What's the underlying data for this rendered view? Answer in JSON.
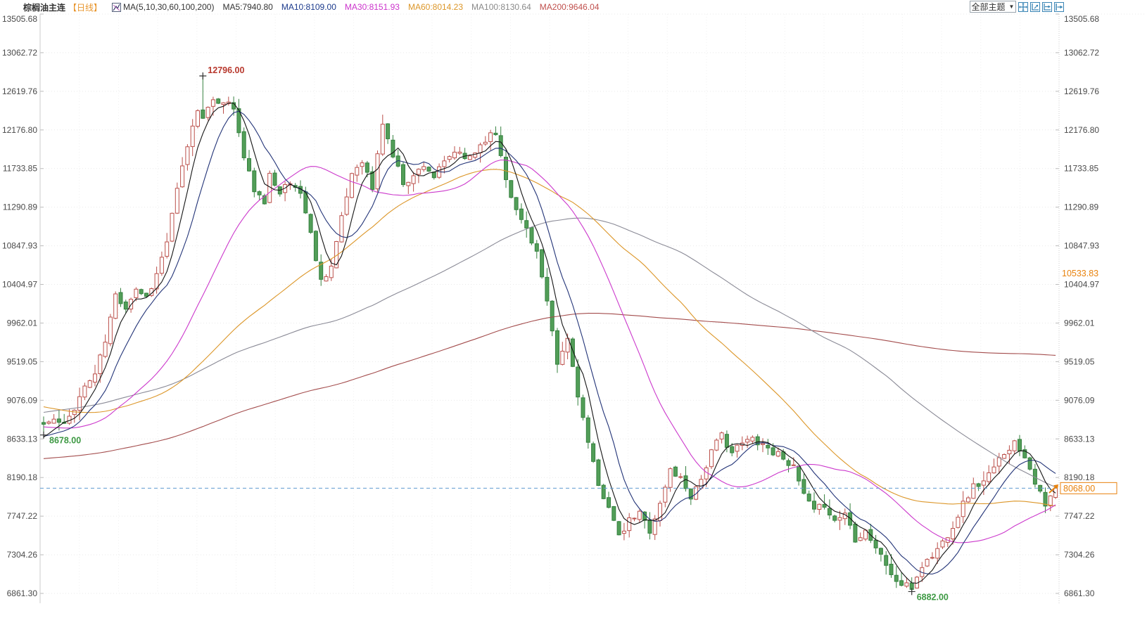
{
  "header": {
    "symbol": "棕榈油主连",
    "period": "【日线】",
    "ma_group": "MA(5,10,30,60,100,200)",
    "ma_items": [
      {
        "label": "MA5:7940.80",
        "color": "#333333"
      },
      {
        "label": "MA10:8109.00",
        "color": "#1b3a8c"
      },
      {
        "label": "MA30:8151.93",
        "color": "#cc33cc"
      },
      {
        "label": "MA60:8014.23",
        "color": "#dc9628"
      },
      {
        "label": "MA100:8130.64",
        "color": "#8a8a8a"
      },
      {
        "label": "MA200:9646.04",
        "color": "#c0504d"
      }
    ]
  },
  "toolbar": {
    "themes_label": "全部主题",
    "arrow": "▼",
    "icon_color": "#3a85b5",
    "icons": [
      "pan-icon",
      "auto-scale-icon",
      "shift-right-icon",
      "goto-latest-icon"
    ]
  },
  "chart_data": {
    "type": "candlestick",
    "title": "棕榈油主连 日线",
    "axis_max": 13505.68,
    "axis_min": 6861.3,
    "grid": true,
    "legend_position": "top-left",
    "y_ticks": [
      {
        "label": "13505.68",
        "value": 13505.68
      },
      {
        "label": "13062.72",
        "value": 13062.72
      },
      {
        "label": "12619.76",
        "value": 12619.76
      },
      {
        "label": "12176.80",
        "value": 12176.8
      },
      {
        "label": "11733.85",
        "value": 11733.85
      },
      {
        "label": "11290.89",
        "value": 11290.89
      },
      {
        "label": "10847.93",
        "value": 10847.93
      },
      {
        "label": "10404.97",
        "value": 10404.97
      },
      {
        "label": "9962.01",
        "value": 9962.01
      },
      {
        "label": "9519.05",
        "value": 9519.05
      },
      {
        "label": "9076.09",
        "value": 9076.09
      },
      {
        "label": "8633.13",
        "value": 8633.13
      },
      {
        "label": "8190.18",
        "value": 8190.18
      },
      {
        "label": "7747.22",
        "value": 7747.22
      },
      {
        "label": "7304.26",
        "value": 7304.26
      },
      {
        "label": "6861.30",
        "value": 6861.3
      }
    ],
    "current_price": 8068.0,
    "annotations": {
      "high_point": {
        "index": 31,
        "value": 12796.0,
        "label": "12796.00",
        "color": "#b8392e"
      },
      "start_low": {
        "index": 0,
        "value": 8678.0,
        "label": "8678.00",
        "color": "#3d9943"
      },
      "low_point": {
        "index": 169,
        "value": 6882.0,
        "label": "6882.00",
        "color": "#3d9943"
      },
      "price_tag": {
        "label": "8068.00",
        "value": 8068.0,
        "color": "#e8820c"
      },
      "side_tag": {
        "label": "10533.83",
        "value": 10533.83,
        "color": "#e8820c"
      }
    },
    "ma_lines": [
      {
        "name": "MA5",
        "window": 5,
        "color": "#151515",
        "latest": 7940.8
      },
      {
        "name": "MA10",
        "window": 10,
        "color": "#223377",
        "latest": 8109.0
      },
      {
        "name": "MA30",
        "window": 30,
        "color": "#cc39cc",
        "latest": 8151.93
      },
      {
        "name": "MA60",
        "window": 60,
        "color": "#dc9628",
        "latest": 8014.23
      },
      {
        "name": "MA100",
        "window": 100,
        "color": "#8a8a96",
        "latest": 8130.64
      },
      {
        "name": "MA200",
        "window": 200,
        "color": "#a34c4c",
        "latest": 9646.04
      }
    ],
    "candles": {
      "count": 198,
      "x_start": 62,
      "x_step": 7.3,
      "body_width": 5,
      "seed": 11,
      "close_noise": 45,
      "wick_max": 110,
      "anchors": [
        [
          0,
          8800
        ],
        [
          2,
          8850
        ],
        [
          4,
          8780
        ],
        [
          6,
          9000
        ],
        [
          8,
          9230
        ],
        [
          10,
          9380
        ],
        [
          12,
          9750
        ],
        [
          14,
          10280
        ],
        [
          16,
          10150
        ],
        [
          18,
          10360
        ],
        [
          20,
          10260
        ],
        [
          22,
          10520
        ],
        [
          24,
          10900
        ],
        [
          26,
          11480
        ],
        [
          28,
          12000
        ],
        [
          30,
          12420
        ],
        [
          31,
          12350
        ],
        [
          33,
          12480
        ],
        [
          35,
          12520
        ],
        [
          37,
          12430
        ],
        [
          39,
          11850
        ],
        [
          41,
          11500
        ],
        [
          43,
          11300
        ],
        [
          44,
          11690
        ],
        [
          46,
          11480
        ],
        [
          48,
          11560
        ],
        [
          50,
          11470
        ],
        [
          52,
          10980
        ],
        [
          54,
          10450
        ],
        [
          56,
          10620
        ],
        [
          58,
          11150
        ],
        [
          60,
          11680
        ],
        [
          62,
          11840
        ],
        [
          64,
          11500
        ],
        [
          66,
          12260
        ],
        [
          68,
          11880
        ],
        [
          70,
          11580
        ],
        [
          72,
          11640
        ],
        [
          74,
          11790
        ],
        [
          76,
          11640
        ],
        [
          78,
          11790
        ],
        [
          80,
          11930
        ],
        [
          82,
          11840
        ],
        [
          84,
          11930
        ],
        [
          86,
          12080
        ],
        [
          88,
          12140
        ],
        [
          90,
          11640
        ],
        [
          92,
          11240
        ],
        [
          94,
          11050
        ],
        [
          96,
          10780
        ],
        [
          98,
          10180
        ],
        [
          100,
          9480
        ],
        [
          102,
          9780
        ],
        [
          104,
          9150
        ],
        [
          106,
          8580
        ],
        [
          108,
          8080
        ],
        [
          110,
          7880
        ],
        [
          112,
          7490
        ],
        [
          114,
          7690
        ],
        [
          116,
          7780
        ],
        [
          118,
          7590
        ],
        [
          120,
          7880
        ],
        [
          122,
          8280
        ],
        [
          124,
          8180
        ],
        [
          126,
          7980
        ],
        [
          128,
          8180
        ],
        [
          130,
          8480
        ],
        [
          132,
          8680
        ],
        [
          134,
          8480
        ],
        [
          136,
          8580
        ],
        [
          138,
          8640
        ],
        [
          140,
          8580
        ],
        [
          142,
          8480
        ],
        [
          144,
          8440
        ],
        [
          146,
          8290
        ],
        [
          148,
          7990
        ],
        [
          150,
          7790
        ],
        [
          152,
          7890
        ],
        [
          154,
          7690
        ],
        [
          156,
          7790
        ],
        [
          158,
          7490
        ],
        [
          160,
          7590
        ],
        [
          162,
          7390
        ],
        [
          164,
          7190
        ],
        [
          166,
          6990
        ],
        [
          168,
          6940
        ],
        [
          169,
          6925
        ],
        [
          171,
          7180
        ],
        [
          173,
          7290
        ],
        [
          175,
          7450
        ],
        [
          177,
          7640
        ],
        [
          179,
          7890
        ],
        [
          181,
          8090
        ],
        [
          183,
          8140
        ],
        [
          185,
          8290
        ],
        [
          187,
          8490
        ],
        [
          189,
          8590
        ],
        [
          191,
          8450
        ],
        [
          193,
          8150
        ],
        [
          195,
          7850
        ],
        [
          196,
          7960
        ],
        [
          197,
          8068
        ]
      ],
      "overrides": {
        "0": {
          "low": 8678
        },
        "31": {
          "high": 12796
        },
        "169": {
          "low": 6882
        },
        "197": {
          "close": 8068
        }
      },
      "prehistory_segments": [
        [
          100,
          7850,
          7900
        ],
        [
          40,
          7900,
          9700
        ],
        [
          30,
          9500,
          9000
        ],
        [
          30,
          8950,
          8600
        ]
      ]
    },
    "colors": {
      "up_stroke": "#bb4f4a",
      "up_fill": "#ffffff",
      "down_stroke": "#35813f",
      "down_fill": "#529e58",
      "dashed_line": "#5f9bd0",
      "grid": "#e9e9e9",
      "vgrid": "#f0f0f0",
      "axis_text": "#4a4a4a",
      "plot_border": "#cccccc"
    }
  }
}
